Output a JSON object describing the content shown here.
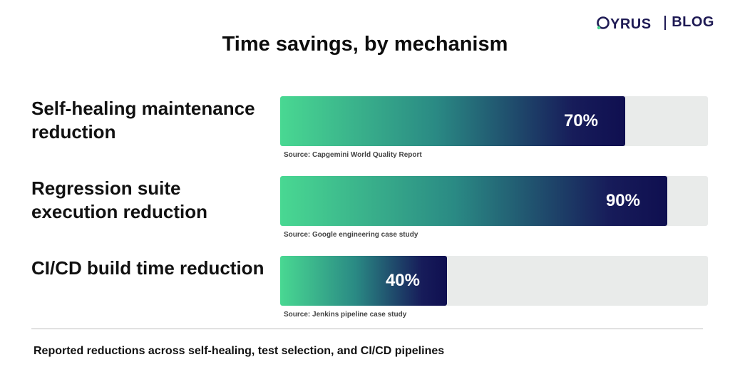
{
  "brand": {
    "logo_text": "QYRUS",
    "blog_label": "BLOG",
    "color": "#1e1a54",
    "accent": "#49d892"
  },
  "footer": {
    "note": "Reported reductions across self-healing, test selection, and CI/CD pipelines"
  },
  "chart_data": {
    "type": "bar",
    "orientation": "horizontal",
    "title": "Time savings, by mechanism",
    "categories": [
      "Self-healing maintenance reduction",
      "Regression suite execution reduction",
      "CI/CD build time reduction"
    ],
    "series": [
      {
        "values": [
          70,
          90,
          40
        ],
        "value_labels": [
          "70%",
          "90%",
          "40%"
        ]
      }
    ],
    "annotations": [
      "Source: Capgemini World Quality Report",
      "Source: Google engineering case study",
      "Source: Jenkins pipeline case study"
    ],
    "xlim": [
      0,
      100
    ],
    "xlabel": "",
    "ylabel": "",
    "grid": false,
    "colors": {
      "gradient_start": "#49d892",
      "gradient_end": "#0f0f50",
      "track": "#e9ebea"
    }
  }
}
